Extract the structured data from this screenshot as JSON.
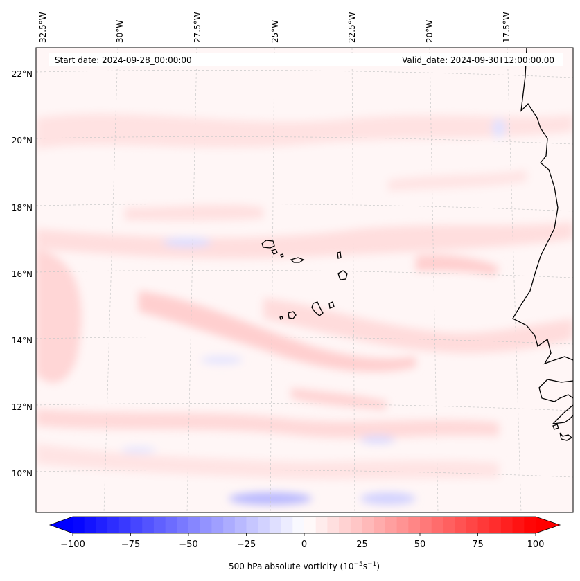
{
  "header": {
    "start_date": "Start date: 2024-09-28_00:00:00",
    "valid_date": "Valid_date: 2024-09-30T12:00:00.00"
  },
  "axes": {
    "longitude_labels": [
      "32.5°W",
      "30°W",
      "27.5°W",
      "25°W",
      "22.5°W",
      "20°W",
      "17.5°W"
    ],
    "latitude_labels": [
      "22°N",
      "20°N",
      "18°N",
      "16°N",
      "14°N",
      "12°N",
      "10°N"
    ]
  },
  "colorbar": {
    "tick_labels": [
      "−100",
      "−75",
      "−50",
      "−25",
      "0",
      "25",
      "50",
      "75",
      "100"
    ],
    "label_main": "500 hPa absolute vorticity (10",
    "label_exp1": "−5",
    "label_mid": "s",
    "label_exp2": "−1",
    "label_end": ")",
    "colors": {
      "min": "#0000ff",
      "mid": "#ffffff",
      "max": "#ff0000"
    }
  },
  "map": {
    "land_outline_color": "#000000",
    "grid_color": "#c8c8c8"
  }
}
